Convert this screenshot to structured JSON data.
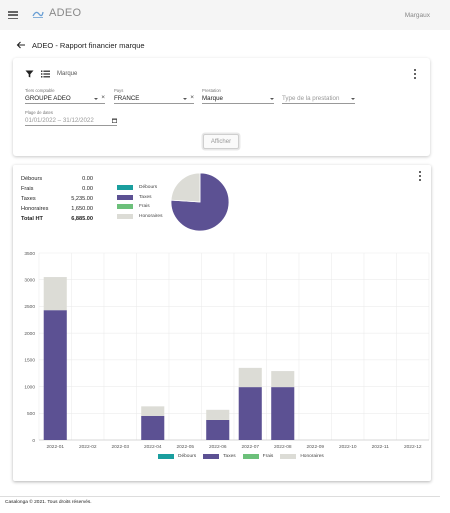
{
  "topbar": {
    "title": "ADEO",
    "user": "Margaux"
  },
  "header": {
    "title": "ADEO - Rapport financier marque"
  },
  "filters": {
    "mode_label": "Marque",
    "tiers": {
      "label": "Tiers comptable",
      "value": "GROUPE ADEO"
    },
    "pays": {
      "label": "Pays",
      "value": "FRANCE"
    },
    "prestation": {
      "label": "Prestation",
      "value": "Marque"
    },
    "type_prestation": {
      "placeholder": "Type de la prestation"
    },
    "dates": {
      "label": "Plage de dates",
      "value": "01/01/2022 – 31/12/2022"
    },
    "submit_label": "Afficher"
  },
  "summary": {
    "rows": [
      {
        "label": "Débours",
        "value": "0.00"
      },
      {
        "label": "Frais",
        "value": "0.00"
      },
      {
        "label": "Taxes",
        "value": "5,235.00"
      },
      {
        "label": "Honoraires",
        "value": "1,650.00"
      }
    ],
    "total": {
      "label": "Total HT",
      "value": "6,885.00"
    }
  },
  "colors": {
    "debours": "#1a9e9e",
    "taxes": "#5c5193",
    "frais": "#6cc07a",
    "honoraires": "#dcdcd6"
  },
  "chart_data": [
    {
      "type": "pie",
      "labels": [
        "Débours",
        "Taxes",
        "Frais",
        "Honoraires"
      ],
      "values": [
        0,
        5235,
        0,
        1650
      ]
    },
    {
      "type": "bar",
      "stacked": true,
      "categories": [
        "2022-01",
        "2022-02",
        "2022-03",
        "2022-04",
        "2022-05",
        "2022-06",
        "2022-07",
        "2022-08",
        "2022-09",
        "2022-10",
        "2022-11",
        "2022-12"
      ],
      "series": [
        {
          "name": "Débours",
          "values": [
            0,
            0,
            0,
            0,
            0,
            0,
            0,
            0,
            0,
            0,
            0,
            0
          ]
        },
        {
          "name": "Taxes",
          "values": [
            2430,
            0,
            0,
            450,
            0,
            375,
            990,
            990,
            0,
            0,
            0,
            0
          ]
        },
        {
          "name": "Frais",
          "values": [
            0,
            0,
            0,
            0,
            0,
            0,
            0,
            0,
            0,
            0,
            0,
            0
          ]
        },
        {
          "name": "Honoraires",
          "values": [
            620,
            0,
            0,
            180,
            0,
            190,
            360,
            300,
            0,
            0,
            0,
            0
          ]
        }
      ],
      "yticks": [
        "0",
        "500",
        "1000",
        "1500",
        "2000",
        "2500",
        "3000",
        "3500"
      ],
      "ylim": [
        0,
        3500
      ],
      "grid": true,
      "legend": "bottom"
    }
  ],
  "footer": {
    "text": "Casalonga © 2021. Tous droits réservés."
  }
}
